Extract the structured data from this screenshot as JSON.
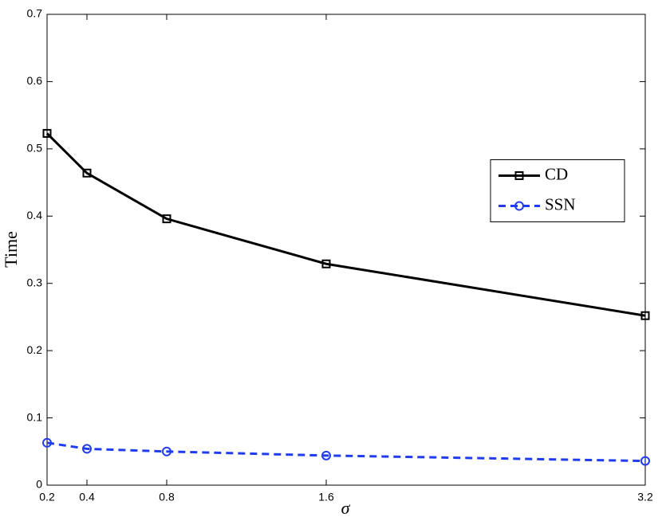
{
  "chart_data": {
    "type": "line",
    "x_label": "σ",
    "y_label": "Time",
    "x": [
      0.2,
      0.4,
      0.8,
      1.6,
      3.2
    ],
    "series": [
      {
        "name": "CD",
        "color": "#000000",
        "marker": "square",
        "dash": false,
        "values": [
          0.523,
          0.464,
          0.396,
          0.329,
          0.252
        ]
      },
      {
        "name": "SSN",
        "color": "#1f3cf0",
        "marker": "circle",
        "dash": true,
        "values": [
          0.063,
          0.054,
          0.05,
          0.044,
          0.036
        ]
      }
    ],
    "xlim": [
      0.2,
      3.2
    ],
    "xticks": [
      0.2,
      0.4,
      0.8,
      1.6,
      3.2
    ],
    "ylim": [
      0,
      0.7
    ],
    "yticks": [
      0,
      0.1,
      0.2,
      0.3,
      0.4,
      0.5,
      0.6,
      0.7
    ],
    "grid": false,
    "legend": "right"
  }
}
